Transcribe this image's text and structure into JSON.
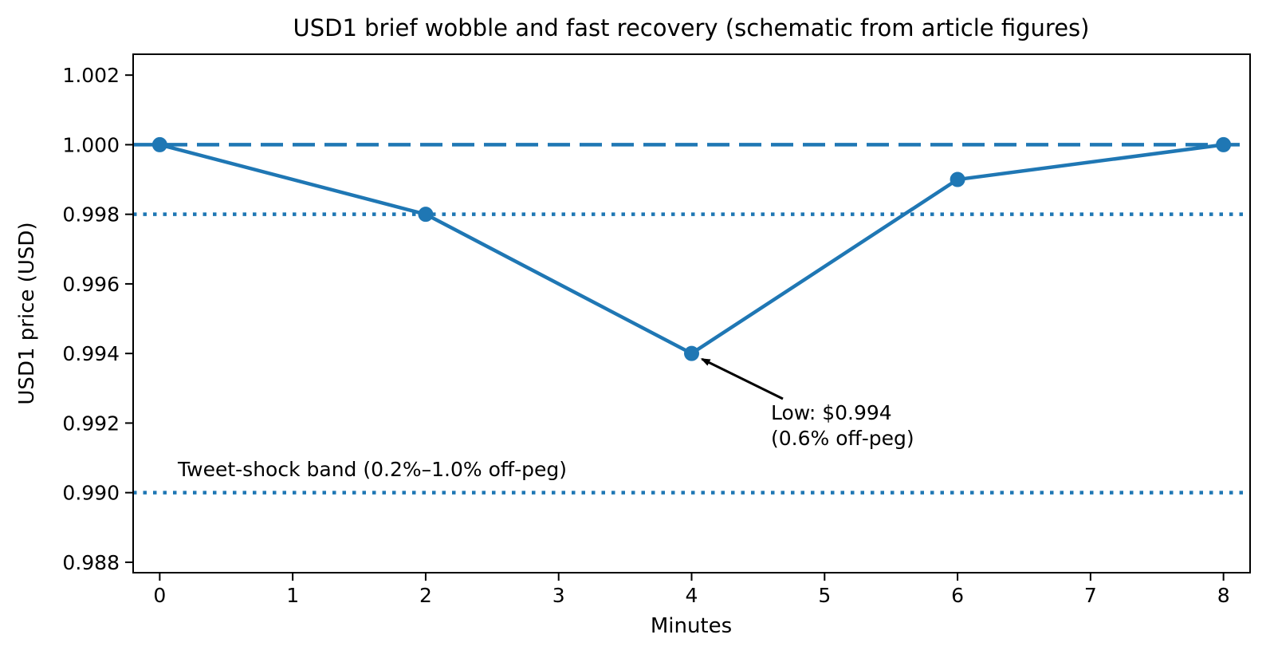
{
  "chart_data": {
    "type": "line",
    "title": "USD1 brief wobble and fast recovery (schematic from article figures)",
    "xlabel": "Minutes",
    "ylabel": "USD1 price (USD)",
    "x": [
      0,
      2,
      4,
      6,
      8
    ],
    "y": [
      1.0,
      0.998,
      0.994,
      0.999,
      1.0
    ],
    "xlim": [
      -0.2,
      8.2
    ],
    "ylim": [
      0.9877,
      1.0026
    ],
    "xticks": [
      "0",
      "1",
      "2",
      "3",
      "4",
      "5",
      "6",
      "7",
      "8"
    ],
    "xtick_values": [
      0,
      1,
      2,
      3,
      4,
      5,
      6,
      7,
      8
    ],
    "yticks": [
      "0.988",
      "0.990",
      "0.992",
      "0.994",
      "0.996",
      "0.998",
      "1.000",
      "1.002"
    ],
    "ytick_values": [
      0.988,
      0.99,
      0.992,
      0.994,
      0.996,
      0.998,
      1.0,
      1.002
    ],
    "grid": false,
    "legend": "none",
    "peg_line": {
      "y": 1.0,
      "style": "dashed"
    },
    "band_lines": [
      {
        "y": 0.998,
        "style": "dotted"
      },
      {
        "y": 0.99,
        "style": "dotted"
      }
    ],
    "band_label": "Tweet-shock band (0.2%–1.0% off-peg)",
    "annotation": {
      "line1": "Low: $0.994",
      "line2": "(0.6% off-peg)",
      "target": {
        "x": 4,
        "y": 0.994
      }
    },
    "colors": {
      "line": "#1f77b4",
      "marker": "#1f77b4",
      "peg_line": "#1f77b4",
      "band_line": "#1f77b4",
      "text": "#000000",
      "spine": "#000000",
      "arrow": "#000000",
      "background": "#ffffff"
    }
  }
}
